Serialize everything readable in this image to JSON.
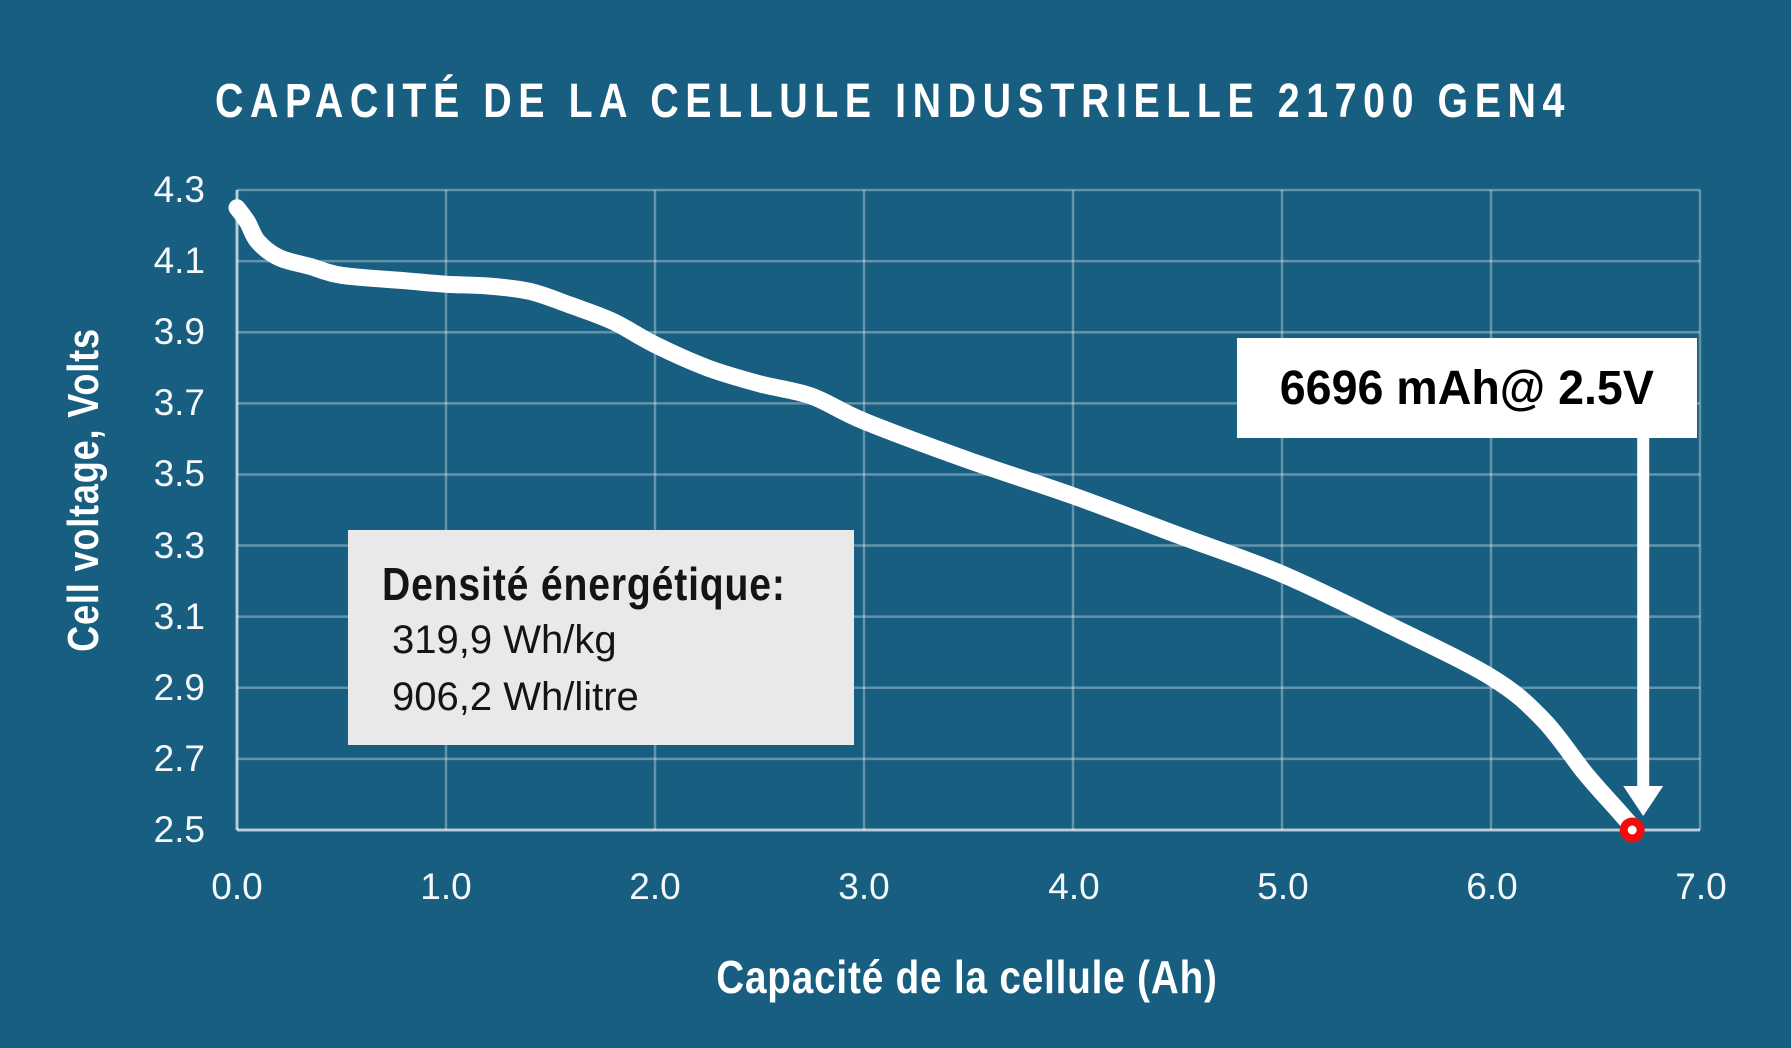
{
  "page_title": "CAPACITÉ DE LA CELLULE INDUSTRIELLE 21700 GEN4",
  "colors": {
    "background": "#175E80",
    "gridline": "rgba(255,255,255,0.33)",
    "axis_line": "rgba(255,255,255,0.55)",
    "curve": "#FFFFFF",
    "marker_red": "#F20D0D",
    "marker_center": "#FFFFFF",
    "arrow": "#FFFFFF",
    "annotation_bg": "#FFFFFF",
    "annotation_text": "#000000",
    "density_bg": "#E9E9E9",
    "density_text": "#141414",
    "title_text": "#FFFFFF"
  },
  "chart_data": {
    "type": "line",
    "title": "CAPACITÉ DE LA CELLULE INDUSTRIELLE 21700 GEN4",
    "xlabel": "Capacité de la cellule (Ah)",
    "ylabel": "Cell voltage, Volts",
    "xlim": [
      0.0,
      7.0
    ],
    "ylim": [
      2.5,
      4.3
    ],
    "grid": true,
    "legend": "none",
    "xticks": [
      "0.0",
      "1.0",
      "2.0",
      "3.0",
      "4.0",
      "5.0",
      "6.0",
      "7.0"
    ],
    "yticks": [
      "4.3",
      "4.1",
      "3.9",
      "3.7",
      "3.5",
      "3.3",
      "3.1",
      "2.9",
      "2.7",
      "2.5"
    ],
    "series": [
      {
        "name": "discharge-curve",
        "color": "#FFFFFF",
        "x": [
          0.0,
          0.05,
          0.1,
          0.2,
          0.35,
          0.5,
          0.8,
          1.0,
          1.2,
          1.4,
          1.6,
          1.8,
          2.0,
          2.25,
          2.5,
          2.75,
          3.0,
          3.5,
          4.0,
          4.5,
          5.0,
          5.5,
          6.0,
          6.25,
          6.45,
          6.6,
          6.69
        ],
        "y": [
          4.25,
          4.21,
          4.155,
          4.11,
          4.085,
          4.06,
          4.045,
          4.035,
          4.03,
          4.015,
          3.975,
          3.93,
          3.865,
          3.8,
          3.755,
          3.72,
          3.65,
          3.54,
          3.44,
          3.33,
          3.22,
          3.08,
          2.93,
          2.81,
          2.66,
          2.56,
          2.5
        ]
      }
    ],
    "endpoint": {
      "x": 6.69,
      "y": 2.5,
      "marker_color": "#F20D0D"
    },
    "annotations": [
      {
        "id": "capacity-callout",
        "text": "6696 mAh@ 2.5V"
      },
      {
        "id": "energy-density",
        "heading": "Densité énergétique:",
        "lines": [
          "319,9 Wh/kg",
          "906,2 Wh/litre"
        ]
      }
    ]
  }
}
